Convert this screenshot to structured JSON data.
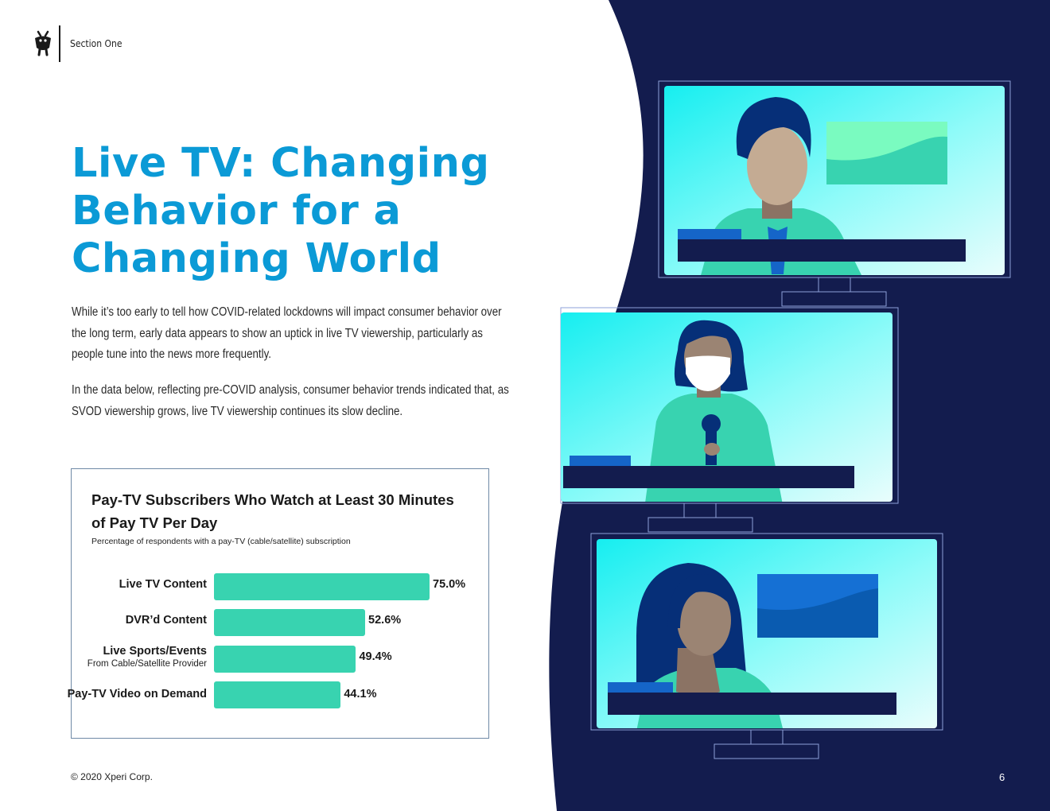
{
  "header": {
    "logo_icon": "tivo-robot-logo-icon",
    "section_label": "Section One"
  },
  "title": "Live TV: Changing Behavior for a Changing World",
  "paragraphs": [
    "While it’s too early to tell how COVID-related lockdowns will impact consumer behavior over the long term, early data appears to show an uptick in live TV viewership, particularly as people tune into the news more frequently.",
    "In the data below, reflecting pre-COVID analysis, consumer behavior trends indicated that, as SVOD viewership grows, live TV viewership continues its slow decline."
  ],
  "chart": {
    "title": "Pay-TV Subscribers Who Watch at Least 30 Minutes of Pay TV Per Day",
    "subtitle": "Percentage of respondents with a pay-TV (cable/satellite) subscription",
    "value_labels": [
      "75.0%",
      "52.6%",
      "49.4%",
      "44.1%"
    ],
    "category_sublabels": [
      "",
      "",
      "From Cable/Satellite Provider",
      ""
    ]
  },
  "chart_data": {
    "type": "bar",
    "orientation": "horizontal",
    "categories": [
      "Live TV Content",
      "DVR’d Content",
      "Live Sports/Events",
      "Pay-TV Video on Demand"
    ],
    "values": [
      75.0,
      52.6,
      49.4,
      44.1
    ],
    "unit": "%",
    "title": "Pay-TV Subscribers Who Watch at Least 30 Minutes of Pay TV Per Day",
    "subtitle": "Percentage of respondents with a pay-TV (cable/satellite) subscription",
    "xlabel": "",
    "ylabel": "",
    "xlim": [
      0,
      100
    ],
    "grid": false,
    "bar_color": "#38d3b0"
  },
  "footer": {
    "copyright": "© 2020 Xperi Corp.",
    "page_number": "6"
  },
  "colors": {
    "title_blue": "#0b9ad6",
    "navy": "#131c4e",
    "bar_teal": "#38d3b0",
    "screen_cyan": "#20f0f0"
  },
  "illustration": {
    "icons": [
      "news-anchor-man-icon",
      "news-reporter-masked-woman-icon",
      "news-anchor-woman-icon"
    ]
  }
}
